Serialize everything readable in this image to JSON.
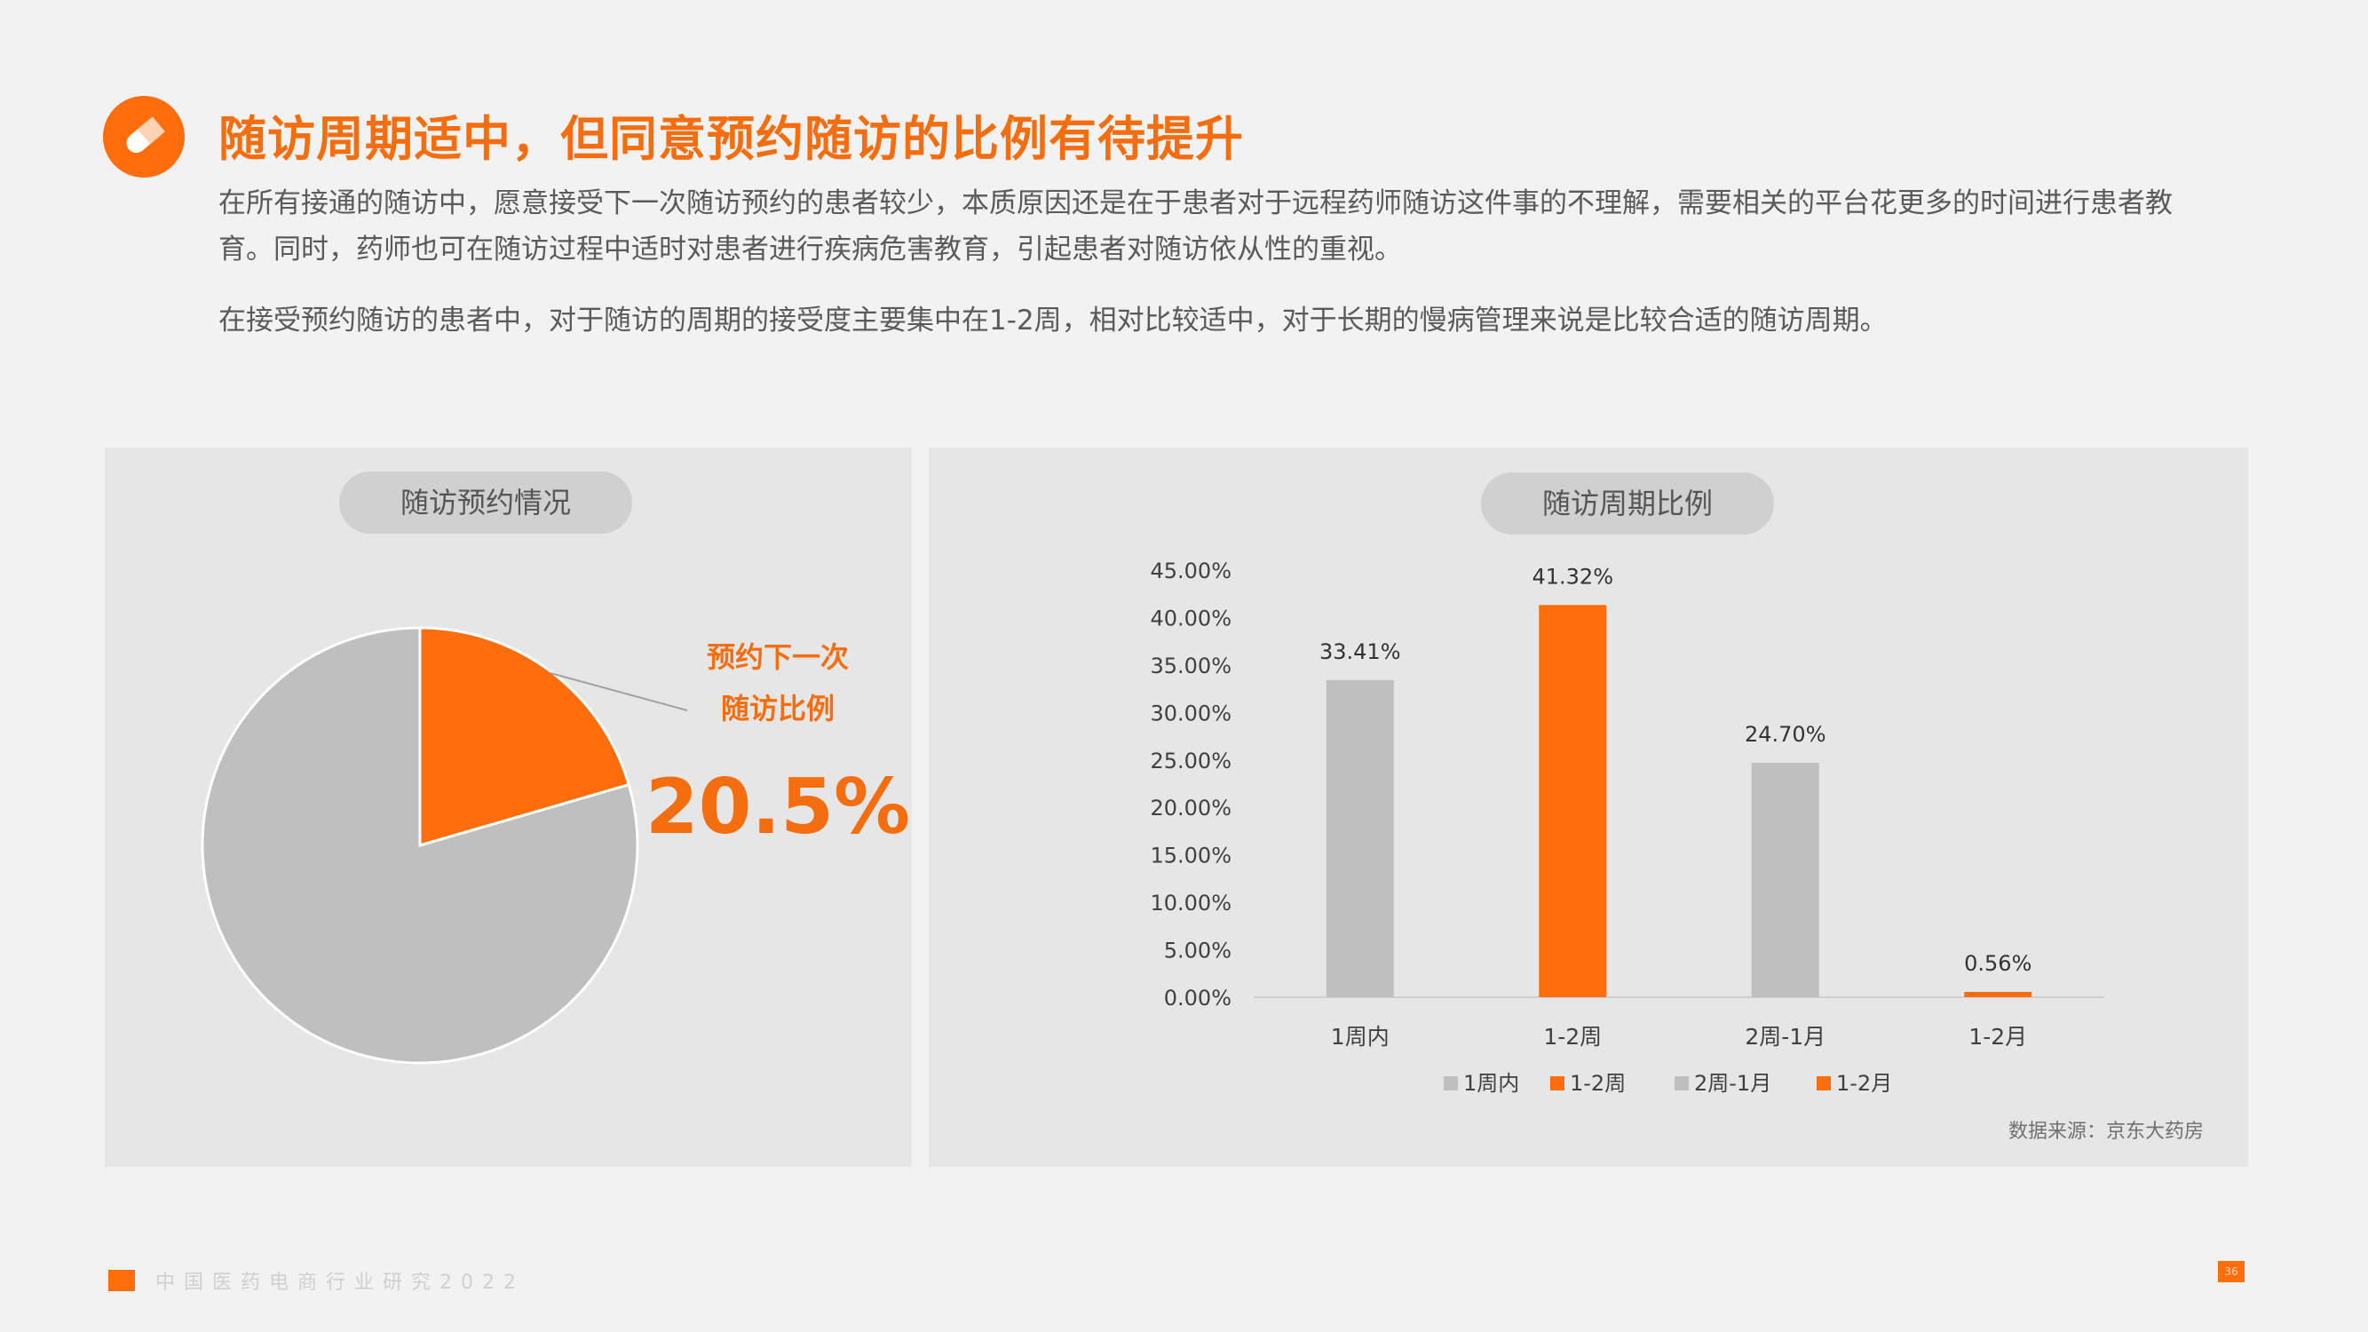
{
  "header": {
    "title": "随访周期适中，但同意预约随访的比例有待提升",
    "icon": "pill-icon",
    "accent": "#ff6d0c"
  },
  "paragraphs": [
    "在所有接通的随访中，愿意接受下一次随访预约的患者较少，本质原因还是在于患者对于远程药师随访这件事的不理解，需要相关的平台花更多的时间进行患者教育。同时，药师也可在随访过程中适时对患者进行疾病危害教育，引起患者对随访依从性的重视。",
    "在接受预约随访的患者中，对于随访的周期的接受度主要集中在1-2周，相对比较适中，对于长期的慢病管理来说是比较合适的随访周期。"
  ],
  "pie_panel": {
    "label": "随访预约情况",
    "annotation_line1": "预约下一次",
    "annotation_line2": "随访比例",
    "big_value": "20.5%"
  },
  "bar_panel": {
    "label": "随访周期比例",
    "source": "数据来源：京东大药房"
  },
  "chart_data": [
    {
      "type": "pie",
      "title": "随访预约情况",
      "slices": [
        {
          "label": "预约下一次随访比例",
          "value": 20.5,
          "color": "#ff6d0c"
        },
        {
          "label": "",
          "value": 79.5,
          "color": "#bfbfbf"
        }
      ]
    },
    {
      "type": "bar",
      "title": "随访周期比例",
      "categories": [
        "1周内",
        "1-2周",
        "2周-1月",
        "1-2月"
      ],
      "values": [
        33.41,
        41.32,
        24.7,
        0.56
      ],
      "data_labels": [
        "33.41%",
        "41.32%",
        "24.70%",
        "0.56%"
      ],
      "colors": [
        "#bfbfbf",
        "#ff6d0c",
        "#bfbfbf",
        "#ff6d0c"
      ],
      "ylim": [
        0,
        45
      ],
      "yticks": [
        "0.00%",
        "5.00%",
        "10.00%",
        "15.00%",
        "20.00%",
        "25.00%",
        "30.00%",
        "35.00%",
        "40.00%",
        "45.00%"
      ],
      "grid": false,
      "legend_position": "bottom",
      "legend": [
        "1周内",
        "1-2周",
        "2周-1月",
        "1-2月"
      ]
    }
  ],
  "footer": {
    "text": "中国医药电商行业研究2022",
    "page": "36"
  }
}
